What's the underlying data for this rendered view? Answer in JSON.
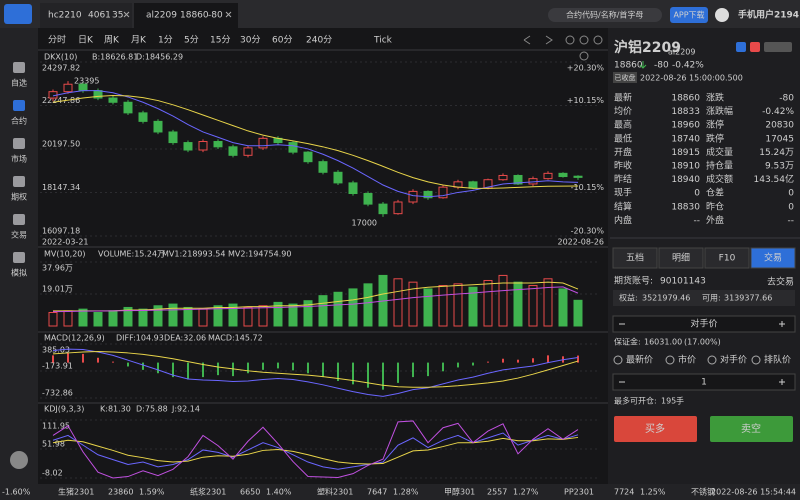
{
  "tabs": [
    {
      "code": "hc2210",
      "price": "4061",
      "change": "35"
    },
    {
      "code": "al2209",
      "price": "18860",
      "change": "-80"
    }
  ],
  "search_placeholder": "合约代码/名称/首字母",
  "app_download": "APP下载",
  "user": "手机用户2194",
  "sidebar": [
    "自选",
    "合约",
    "市场",
    "期权",
    "交易",
    "模拟"
  ],
  "periods": [
    "分时",
    "日K",
    "周K",
    "月K",
    "1分",
    "5分",
    "15分",
    "30分",
    "60分",
    "240分",
    "Tick"
  ],
  "main_chart": {
    "name": "DKX(10)",
    "b_label": "B:18626.81",
    "d_label": "D:18456.29",
    "ylim": [
      16097.18,
      24297.82
    ],
    "yticks": [
      24297.82,
      22247.86,
      {
        "value": 20197.5,
        "label": "20197.50"
      },
      18147.34,
      16097.18
    ],
    "pct_labels": [
      "+20.30%",
      "+10.15%",
      "-10.15%",
      "-20.30%"
    ],
    "start_date": "2022-03-21",
    "end_date": "2022-08-26",
    "annotations": {
      "high": "23395",
      "low": "17000"
    },
    "open": [
      22600,
      22900,
      23250,
      22950,
      22600,
      22400,
      21900,
      21500,
      21000,
      20500,
      20150,
      20550,
      20300,
      19900,
      20250,
      20700,
      20500,
      20050,
      19600,
      19100,
      18600,
      18100,
      17600,
      17150,
      17700,
      18200,
      17900,
      18400,
      18650,
      18350,
      18750,
      18950,
      18550,
      18800,
      19050,
      18915
    ],
    "close": [
      22900,
      23250,
      22950,
      22600,
      22400,
      21900,
      21500,
      21000,
      20500,
      20150,
      20550,
      20300,
      19900,
      20250,
      20700,
      20500,
      20050,
      19600,
      19100,
      18600,
      18100,
      17600,
      17150,
      17700,
      18200,
      17900,
      18400,
      18650,
      18350,
      18750,
      18950,
      18550,
      18800,
      19050,
      18900,
      18860
    ],
    "high": [
      23000,
      23395,
      23350,
      23050,
      22700,
      22500,
      22000,
      21600,
      21100,
      20600,
      20650,
      20650,
      20400,
      20350,
      20800,
      20800,
      20600,
      20100,
      19700,
      19200,
      18700,
      18200,
      17700,
      17800,
      18300,
      18250,
      18500,
      18750,
      18700,
      18800,
      19050,
      19000,
      18900,
      19150,
      19100,
      18960
    ],
    "low": [
      22450,
      22800,
      22850,
      22500,
      22300,
      21800,
      21400,
      20900,
      20400,
      20050,
      20050,
      20200,
      19800,
      19800,
      20150,
      20400,
      19950,
      19500,
      19000,
      18500,
      18000,
      17500,
      17000,
      17100,
      17600,
      17800,
      17850,
      18300,
      18300,
      18300,
      18700,
      18500,
      18450,
      18750,
      18850,
      18740
    ],
    "dkx_b": [
      22700,
      22850,
      22950,
      22950,
      22850,
      22650,
      22400,
      22100,
      21750,
      21350,
      21000,
      20750,
      20500,
      20350,
      20350,
      20400,
      20350,
      20200,
      19950,
      19650,
      19300,
      18900,
      18500,
      18200,
      18000,
      17950,
      18000,
      18150,
      18250,
      18400,
      18550,
      18600,
      18650,
      18700,
      18650,
      18627
    ],
    "dkx_d": [
      22400,
      22500,
      22600,
      22680,
      22720,
      22700,
      22620,
      22480,
      22280,
      22050,
      21800,
      21550,
      21300,
      21050,
      20850,
      20700,
      20580,
      20450,
      20300,
      20120,
      19900,
      19650,
      19380,
      19100,
      18850,
      18650,
      18500,
      18400,
      18350,
      18340,
      18360,
      18390,
      18420,
      18440,
      18450,
      18456
    ]
  },
  "volume_chart": {
    "name": "MV(10,20)",
    "volume_label": "VOLUME:15.24万",
    "mv1_label": "MV1:218993.54",
    "mv2_label": "MV2:194754.90",
    "ylim": [
      0,
      37.96
    ],
    "yticks": [
      {
        "value": 37.96,
        "label": "37.96万"
      },
      {
        "value": 19.01,
        "label": "19.01万"
      }
    ],
    "values": [
      8,
      9,
      10,
      8,
      9,
      11,
      10,
      12,
      13,
      11,
      10,
      12,
      13,
      11,
      12,
      14,
      13,
      15,
      18,
      20,
      22,
      25,
      30,
      28,
      26,
      22,
      24,
      25,
      23,
      27,
      30,
      26,
      24,
      28,
      22,
      15.24
    ],
    "mv1": [
      9,
      9,
      9,
      9,
      9,
      9.5,
      9.5,
      10,
      10.5,
      10.5,
      10.5,
      11,
      11,
      11.5,
      11.5,
      12,
      12,
      12.5,
      13.5,
      14.5,
      15.5,
      17,
      19,
      20.5,
      22,
      23,
      23.5,
      24,
      24.5,
      25,
      25.5,
      25.5,
      25.5,
      26,
      25.5,
      21.9
    ],
    "mv2": [
      8.5,
      8.6,
      8.8,
      8.9,
      9,
      9.1,
      9.2,
      9.4,
      9.6,
      9.8,
      10,
      10.2,
      10.4,
      10.6,
      10.8,
      11,
      11.3,
      11.6,
      12,
      12.5,
      13,
      13.8,
      14.8,
      15.8,
      16.8,
      17.6,
      18.3,
      19,
      19.6,
      20.3,
      21,
      21.6,
      22.2,
      22.8,
      23.2,
      19.5
    ]
  },
  "macd_chart": {
    "name": "MACD(12,26,9)",
    "diff_label": "DIFF:104.93",
    "dea_label": "DEA:32.06",
    "macd_label": "MACD:145.72",
    "ylim": [
      -732.86,
      385.03
    ],
    "yticks": [
      385.03,
      -173.91,
      -732.86
    ],
    "macd": [
      150,
      200,
      180,
      100,
      20,
      -80,
      -150,
      -220,
      -300,
      -350,
      -300,
      -260,
      -280,
      -220,
      -150,
      -120,
      -160,
      -220,
      -300,
      -380,
      -450,
      -520,
      -560,
      -420,
      -300,
      -280,
      -180,
      -100,
      -60,
      20,
      80,
      60,
      90,
      150,
      130,
      145.72
    ],
    "diff": [
      250,
      280,
      270,
      220,
      150,
      50,
      -50,
      -150,
      -260,
      -340,
      -360,
      -370,
      -390,
      -380,
      -350,
      -330,
      -350,
      -400,
      -460,
      -530,
      -600,
      -660,
      -700,
      -640,
      -560,
      -520,
      -440,
      -360,
      -300,
      -220,
      -150,
      -110,
      -70,
      0,
      60,
      104.93
    ],
    "dea": [
      180,
      200,
      220,
      230,
      220,
      200,
      170,
      130,
      80,
      20,
      -40,
      -90,
      -130,
      -170,
      -200,
      -220,
      -240,
      -260,
      -290,
      -330,
      -370,
      -420,
      -470,
      -500,
      -510,
      -510,
      -500,
      -480,
      -450,
      -420,
      -380,
      -320,
      -240,
      -150,
      -60,
      32.06
    ]
  },
  "kdj_chart": {
    "name": "KDJ(9,3,3)",
    "k_label": "K:81.30",
    "d_label": "D:75.88",
    "j_label": "J:92.14",
    "ylim": [
      -8.02,
      111.95
    ],
    "yticks": [
      111.95,
      51.98,
      -8.02
    ],
    "k": [
      70,
      80,
      60,
      40,
      30,
      20,
      25,
      15,
      20,
      30,
      50,
      45,
      35,
      50,
      65,
      55,
      40,
      25,
      15,
      10,
      15,
      20,
      25,
      60,
      75,
      55,
      70,
      80,
      65,
      75,
      85,
      60,
      70,
      80,
      72,
      81.3
    ],
    "d": [
      65,
      70,
      67,
      58,
      49,
      39,
      34,
      28,
      25,
      27,
      35,
      38,
      37,
      41,
      49,
      51,
      47,
      40,
      32,
      25,
      22,
      21,
      22,
      35,
      48,
      50,
      57,
      65,
      65,
      68,
      74,
      69,
      69,
      73,
      72,
      75.88
    ],
    "j": [
      80,
      100,
      46,
      4,
      -8,
      -5,
      7,
      -3,
      10,
      36,
      80,
      59,
      31,
      68,
      97,
      63,
      26,
      -5,
      -6,
      -7,
      1,
      18,
      31,
      108,
      110,
      65,
      96,
      105,
      65,
      89,
      104,
      42,
      72,
      94,
      72,
      92.14
    ]
  },
  "ticker": [
    {
      "name": "",
      "price": "",
      "pct": "-1.60%"
    },
    {
      "name": "生猪2301",
      "price": "23860",
      "pct": "1.59%"
    },
    {
      "name": "纸浆2301",
      "price": "6650",
      "pct": "1.40%"
    },
    {
      "name": "塑料2301",
      "price": "7647",
      "pct": "1.28%"
    },
    {
      "name": "甲醇301",
      "price": "2557",
      "pct": "1.27%"
    },
    {
      "name": "PP2301",
      "price": "7724",
      "pct": "1.25%"
    },
    {
      "name": "不锈钢",
      "price": "",
      "pct": ""
    }
  ],
  "clock": "2022-08-26 15:54:44",
  "quote": {
    "title": "沪铝2209",
    "code": "al2209",
    "price": "18860",
    "change": "-80",
    "change_pct": "-0.42%",
    "status": "已收盘",
    "time": "2022-08-26 15:00:00.500",
    "rows": [
      [
        "最新",
        "18860",
        "涨跌",
        "-80"
      ],
      [
        "均价",
        "18833",
        "涨跌幅",
        "-0.42%"
      ],
      [
        "最高",
        "18960",
        "涨停",
        "20830"
      ],
      [
        "最低",
        "18740",
        "跌停",
        "17045"
      ],
      [
        "开盘",
        "18915",
        "成交量",
        "15.24万"
      ],
      [
        "昨收",
        "18910",
        "持仓量",
        "9.53万"
      ],
      [
        "昨结",
        "18940",
        "成交额",
        "143.54亿"
      ],
      [
        "现手",
        "0",
        "仓差",
        "0"
      ],
      [
        "结算",
        "18830",
        "昨仓",
        "0"
      ],
      [
        "内盘",
        "--",
        "外盘",
        "--"
      ]
    ]
  },
  "trade": {
    "tabs": [
      "五档",
      "明细",
      "F10",
      "交易"
    ],
    "account_label": "期货账号:",
    "account": "90101143",
    "go_trade": "去交易",
    "equity_label": "权益:",
    "equity": "3521979.46",
    "available_label": "可用:",
    "available": "3139377.66",
    "price_type": "对手价",
    "margin_label": "保证金:",
    "margin": "16031.00",
    "margin_pct": "(17.00%)",
    "radios": [
      "最新价",
      "市价",
      "对手价",
      "排队价"
    ],
    "quantity": "1",
    "max_label": "最多可开仓:",
    "max": "195",
    "max_unit": "手",
    "buy": "买多",
    "sell": "卖空"
  }
}
